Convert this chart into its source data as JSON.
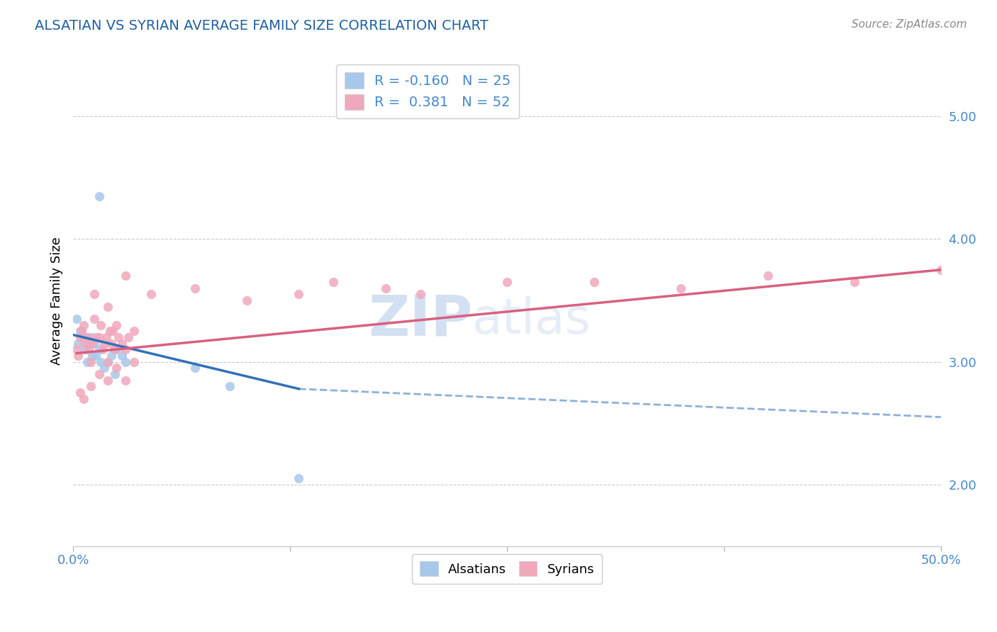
{
  "title": "ALSATIAN VS SYRIAN AVERAGE FAMILY SIZE CORRELATION CHART",
  "source": "Source: ZipAtlas.com",
  "ylabel": "Average Family Size",
  "yticks": [
    2.0,
    3.0,
    4.0,
    5.0
  ],
  "xlim": [
    0.0,
    50.0
  ],
  "ylim": [
    1.5,
    5.5
  ],
  "title_color": "#2060a0",
  "axis_color": "#4488cc",
  "watermark": "ZIPatlas",
  "legend_r_alsatian": "-0.160",
  "legend_n_alsatian": "25",
  "legend_r_syrian": "0.381",
  "legend_n_syrian": "52",
  "alsatian_color": "#a8c8ea",
  "syrian_color": "#f0a8bc",
  "alsatian_line_color": "#3070b8",
  "syrian_line_color": "#d86080",
  "background_color": "#ffffff",
  "alsatian_x": [
    0.2,
    0.3,
    0.4,
    0.5,
    0.6,
    0.7,
    0.8,
    0.9,
    1.0,
    1.1,
    1.2,
    1.3,
    1.5,
    1.6,
    1.8,
    2.0,
    2.2,
    2.4,
    2.5,
    2.8,
    3.0,
    1.5,
    7.0,
    9.0,
    13.0
  ],
  "alsatian_y": [
    3.35,
    3.15,
    3.25,
    3.25,
    3.2,
    3.1,
    3.0,
    3.15,
    3.2,
    3.05,
    3.15,
    3.05,
    3.1,
    3.0,
    2.95,
    3.0,
    3.05,
    2.9,
    3.1,
    3.05,
    3.0,
    4.35,
    2.95,
    2.8,
    2.05
  ],
  "syrian_x": [
    0.2,
    0.3,
    0.4,
    0.5,
    0.6,
    0.7,
    0.8,
    0.9,
    1.0,
    1.1,
    1.2,
    1.3,
    1.5,
    1.6,
    1.7,
    1.8,
    1.9,
    2.0,
    2.1,
    2.2,
    2.3,
    2.4,
    2.5,
    2.6,
    2.8,
    3.0,
    3.2,
    3.5,
    1.0,
    1.5,
    2.0,
    2.5,
    3.0,
    3.5,
    4.5,
    7.0,
    10.0,
    13.0,
    15.0,
    18.0,
    20.0,
    25.0,
    30.0,
    35.0,
    40.0,
    45.0,
    50.0,
    0.4,
    0.6,
    1.2,
    2.0,
    3.0
  ],
  "syrian_y": [
    3.1,
    3.05,
    3.2,
    3.25,
    3.3,
    3.15,
    3.2,
    3.1,
    3.0,
    3.15,
    3.35,
    3.2,
    3.2,
    3.3,
    3.1,
    3.15,
    3.2,
    3.0,
    3.25,
    3.15,
    3.25,
    3.1,
    3.3,
    3.2,
    3.15,
    3.1,
    3.2,
    3.25,
    2.8,
    2.9,
    2.85,
    2.95,
    2.85,
    3.0,
    3.55,
    3.6,
    3.5,
    3.55,
    3.65,
    3.6,
    3.55,
    3.65,
    3.65,
    3.6,
    3.7,
    3.65,
    3.75,
    2.75,
    2.7,
    3.55,
    3.45,
    3.7
  ],
  "alsatian_line_x0": 0.0,
  "alsatian_line_y0": 3.22,
  "alsatian_line_x1": 13.0,
  "alsatian_line_y1": 2.78,
  "alsatian_dash_x0": 13.0,
  "alsatian_dash_y0": 2.78,
  "alsatian_dash_x1": 50.0,
  "alsatian_dash_y1": 2.55,
  "syrian_line_x0": 0.2,
  "syrian_line_y0": 3.07,
  "syrian_line_x1": 50.0,
  "syrian_line_y1": 3.75
}
